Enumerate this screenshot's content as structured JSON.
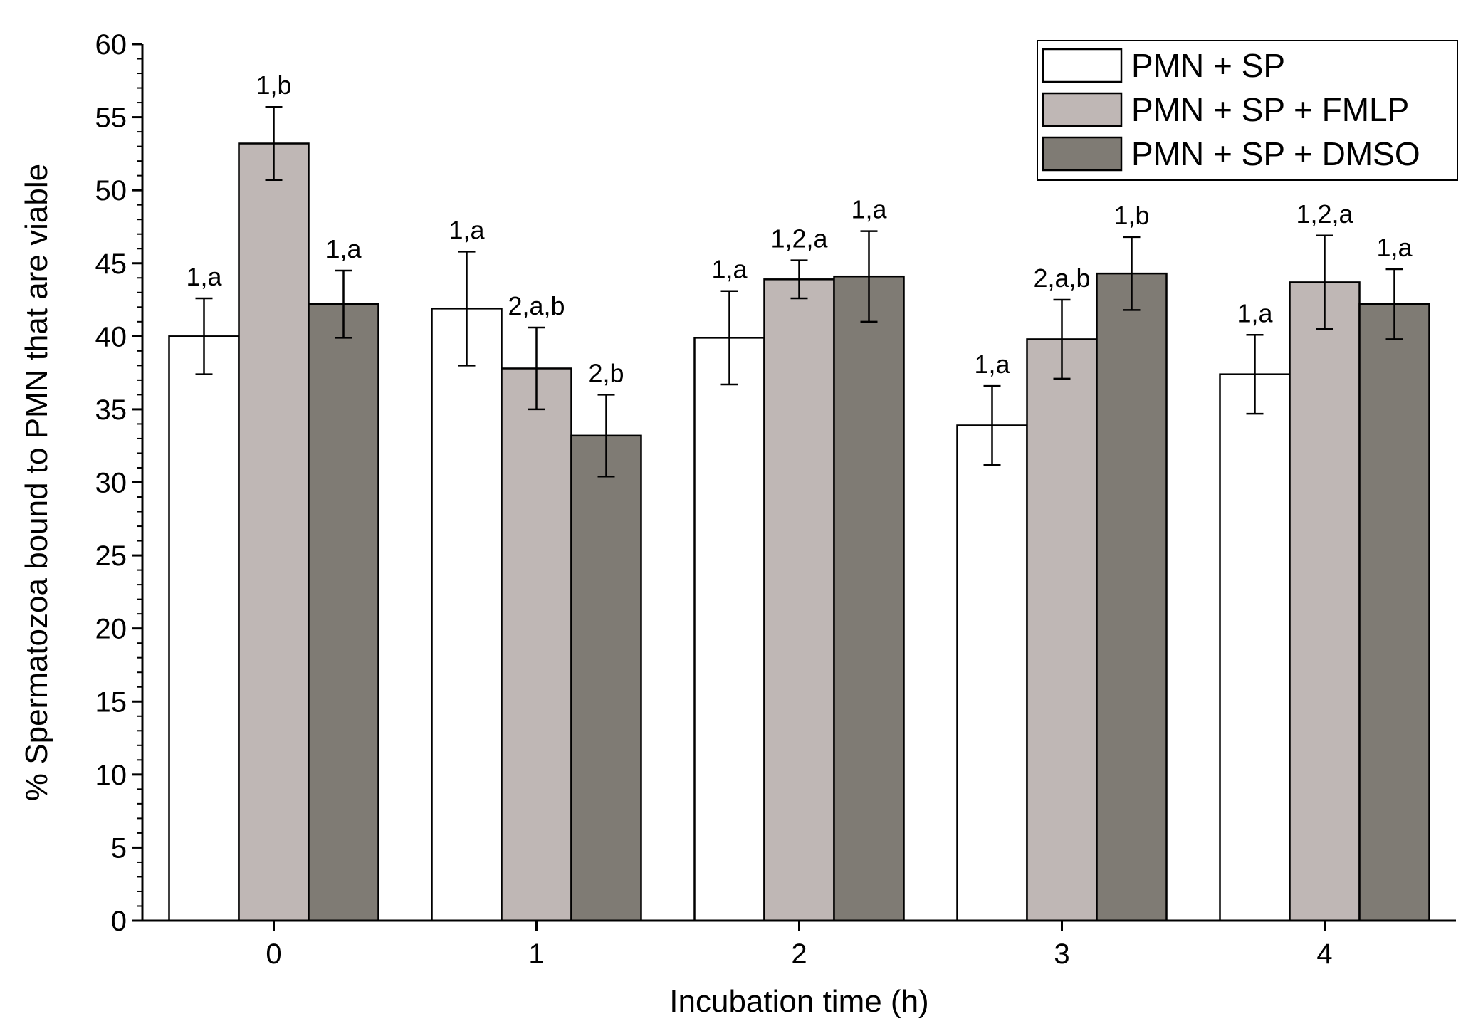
{
  "chart_data": {
    "type": "bar",
    "xlabel": "Incubation time (h)",
    "ylabel": "% Spermatozoa bound to PMN that are viable",
    "ylim": [
      0,
      60
    ],
    "yticks": [
      0,
      5,
      10,
      15,
      20,
      25,
      30,
      35,
      40,
      45,
      50,
      55,
      60
    ],
    "categories": [
      "0",
      "1",
      "2",
      "3",
      "4"
    ],
    "legend_position": "top-right",
    "series": [
      {
        "name": "PMN + SP",
        "color": "#ffffff",
        "values": [
          40.0,
          41.9,
          39.9,
          33.9,
          37.4
        ],
        "errors": [
          2.6,
          3.9,
          3.2,
          2.7,
          2.7
        ],
        "labels": [
          "1,a",
          "1,a",
          "1,a",
          "1,a",
          "1,a"
        ]
      },
      {
        "name": "PMN + SP + FMLP",
        "color": "#bfb7b5",
        "values": [
          53.2,
          37.8,
          43.9,
          39.8,
          43.7
        ],
        "errors": [
          2.5,
          2.8,
          1.3,
          2.7,
          3.2
        ],
        "labels": [
          "1,b",
          "2,a,b",
          "1,2,a",
          "2,a,b",
          "1,2,a"
        ]
      },
      {
        "name": "PMN + SP + DMSO",
        "color": "#7f7b74",
        "values": [
          42.2,
          33.2,
          44.1,
          44.3,
          42.2
        ],
        "errors": [
          2.3,
          2.8,
          3.1,
          2.5,
          2.4
        ],
        "labels": [
          "1,a",
          "2,b",
          "1,a",
          "1,b",
          "1,a"
        ]
      }
    ]
  }
}
